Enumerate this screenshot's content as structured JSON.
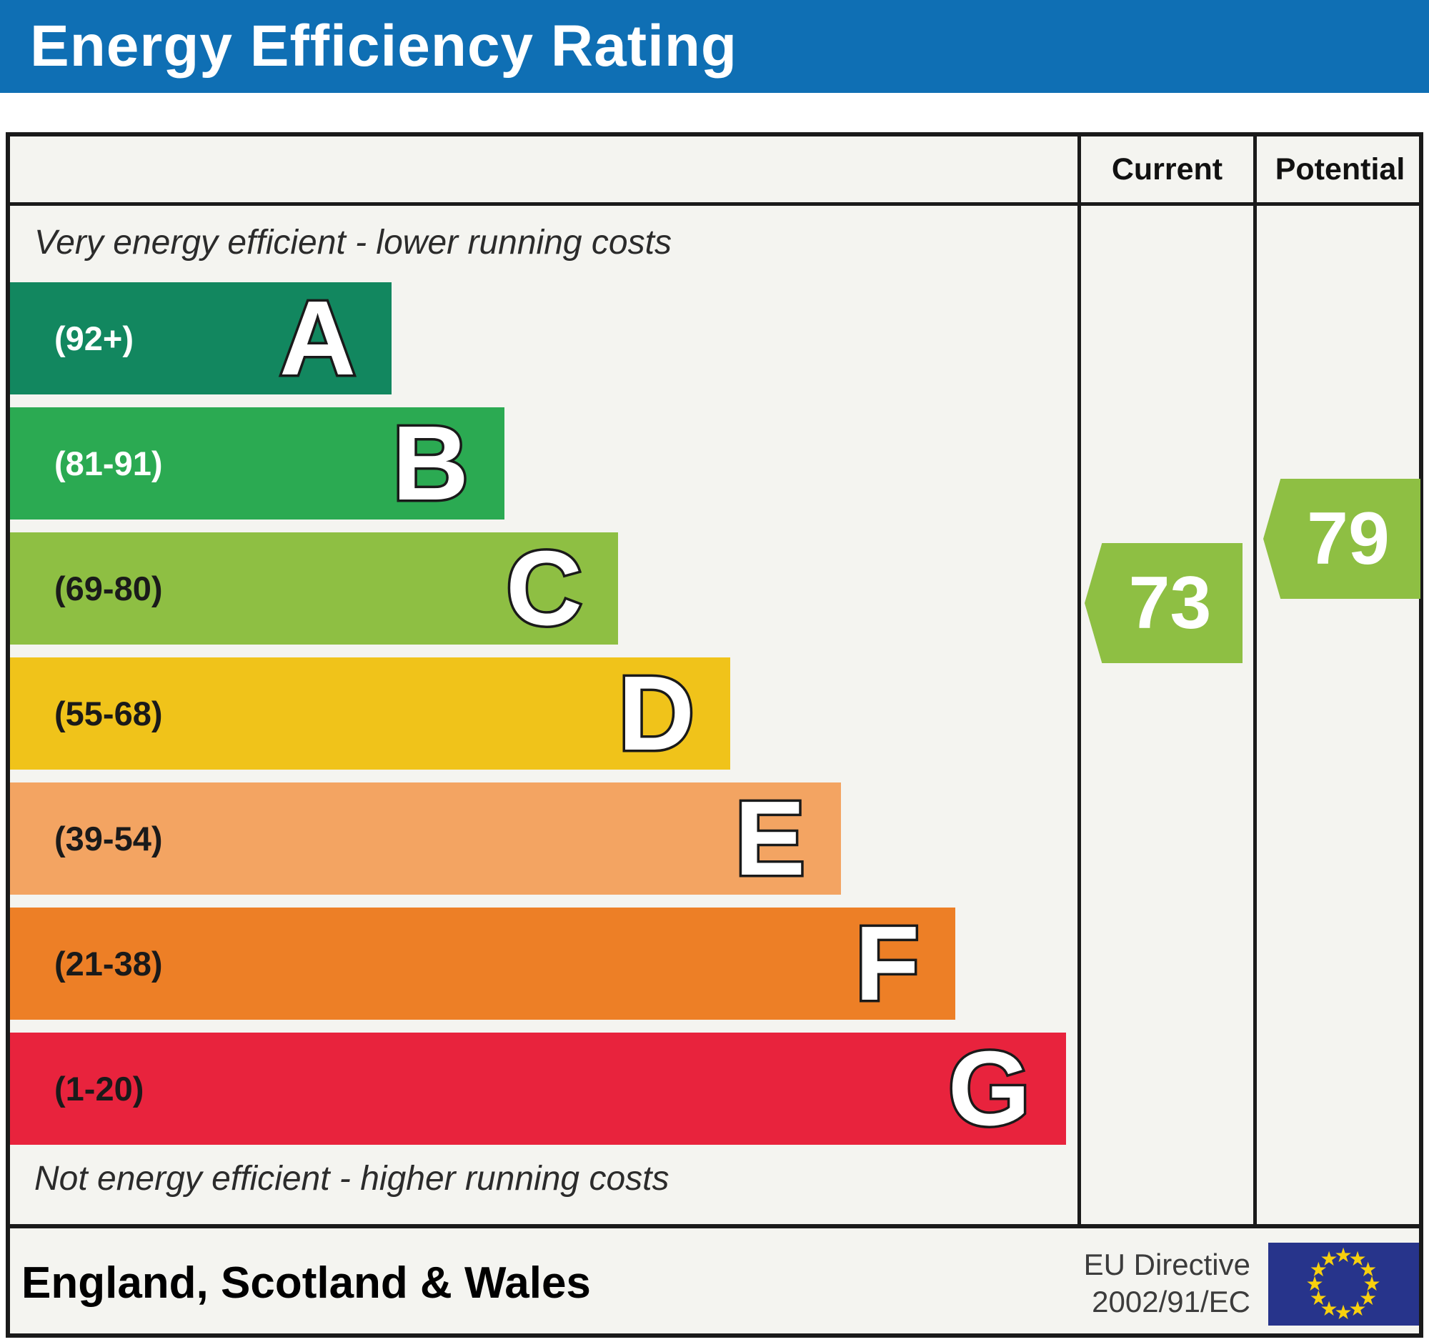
{
  "title": "Energy Efficiency Rating",
  "columns": {
    "current": "Current",
    "potential": "Potential"
  },
  "captions": {
    "top": "Very energy efficient - lower running costs",
    "bottom": "Not energy efficient - higher running costs"
  },
  "footer": {
    "region": "England, Scotland & Wales",
    "directive_line1": "EU Directive",
    "directive_line2": "2002/91/EC",
    "flag_icon": "eu-flag"
  },
  "ratings": {
    "current": {
      "value": "73",
      "band": "C",
      "color": "#8ebf43"
    },
    "potential": {
      "value": "79",
      "band": "C",
      "color": "#8ebf43"
    }
  },
  "colors": {
    "banner_blue": "#0f6fb4",
    "chart_background": "#f4f4f0",
    "border_black": "#1a1a1a",
    "eu_flag_blue": "#27348b",
    "eu_star_yellow": "#f8d00e"
  },
  "chart_data": {
    "type": "bar",
    "title": "Energy Efficiency Rating",
    "categories": [
      "A",
      "B",
      "C",
      "D",
      "E",
      "F",
      "G"
    ],
    "axis_range": [
      1,
      100
    ],
    "current_rating": 73,
    "potential_rating": 79,
    "bands": [
      {
        "letter": "A",
        "range_label": "(92+)",
        "min": 92,
        "max": 100,
        "color": "#12875f",
        "label_color": "#ffffff",
        "width_pct": 35.6
      },
      {
        "letter": "B",
        "range_label": "(81-91)",
        "min": 81,
        "max": 91,
        "color": "#2baa52",
        "label_color": "#ffffff",
        "width_pct": 46.1
      },
      {
        "letter": "C",
        "range_label": "(69-80)",
        "min": 69,
        "max": 80,
        "color": "#8ebf43",
        "label_color": "#1a1a1a",
        "width_pct": 56.7
      },
      {
        "letter": "D",
        "range_label": "(55-68)",
        "min": 55,
        "max": 68,
        "color": "#f0c31a",
        "label_color": "#1a1a1a",
        "width_pct": 67.2
      },
      {
        "letter": "E",
        "range_label": "(39-54)",
        "min": 39,
        "max": 54,
        "color": "#f3a462",
        "label_color": "#1a1a1a",
        "width_pct": 77.5
      },
      {
        "letter": "F",
        "range_label": "(21-38)",
        "min": 21,
        "max": 38,
        "color": "#ed7f26",
        "label_color": "#1a1a1a",
        "width_pct": 88.2
      },
      {
        "letter": "G",
        "range_label": "(1-20)",
        "min": 1,
        "max": 20,
        "color": "#e8233d",
        "label_color": "#1a1a1a",
        "width_pct": 98.5
      }
    ]
  }
}
